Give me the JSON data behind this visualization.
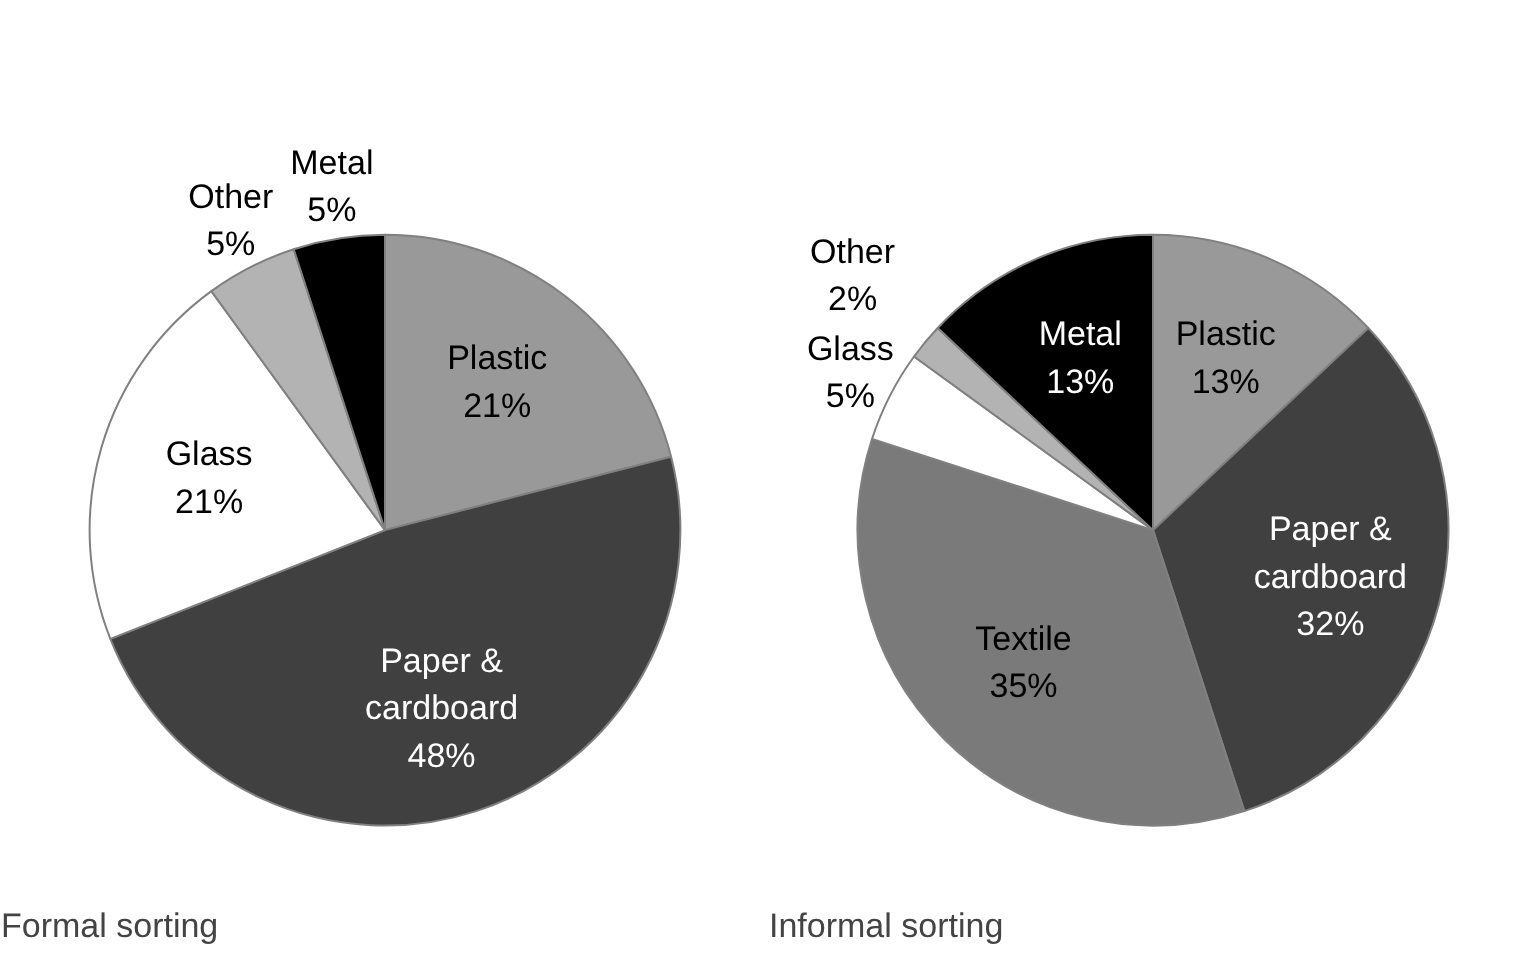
{
  "chart_data": [
    {
      "type": "pie",
      "title": "Formal sorting",
      "categories": [
        "Plastic",
        "Paper & cardboard",
        "Glass",
        "Other",
        "Metal"
      ],
      "values": [
        21,
        48,
        21,
        5,
        5
      ],
      "value_labels": [
        "21%",
        "48%",
        "21%",
        "5%",
        "5%"
      ],
      "colors": [
        "#999999",
        "#404040",
        "#ffffff",
        "#b3b3b3",
        "#000000"
      ]
    },
    {
      "type": "pie",
      "title": "Informal sorting",
      "categories": [
        "Plastic",
        "Paper & cardboard",
        "Textile",
        "Glass",
        "Other",
        "Metal"
      ],
      "values": [
        13,
        32,
        35,
        5,
        2,
        13
      ],
      "value_labels": [
        "13%",
        "32%",
        "35%",
        "5%",
        "2%",
        "13%"
      ],
      "colors": [
        "#999999",
        "#404040",
        "#7a7a7a",
        "#ffffff",
        "#b3b3b3",
        "#000000"
      ]
    }
  ]
}
